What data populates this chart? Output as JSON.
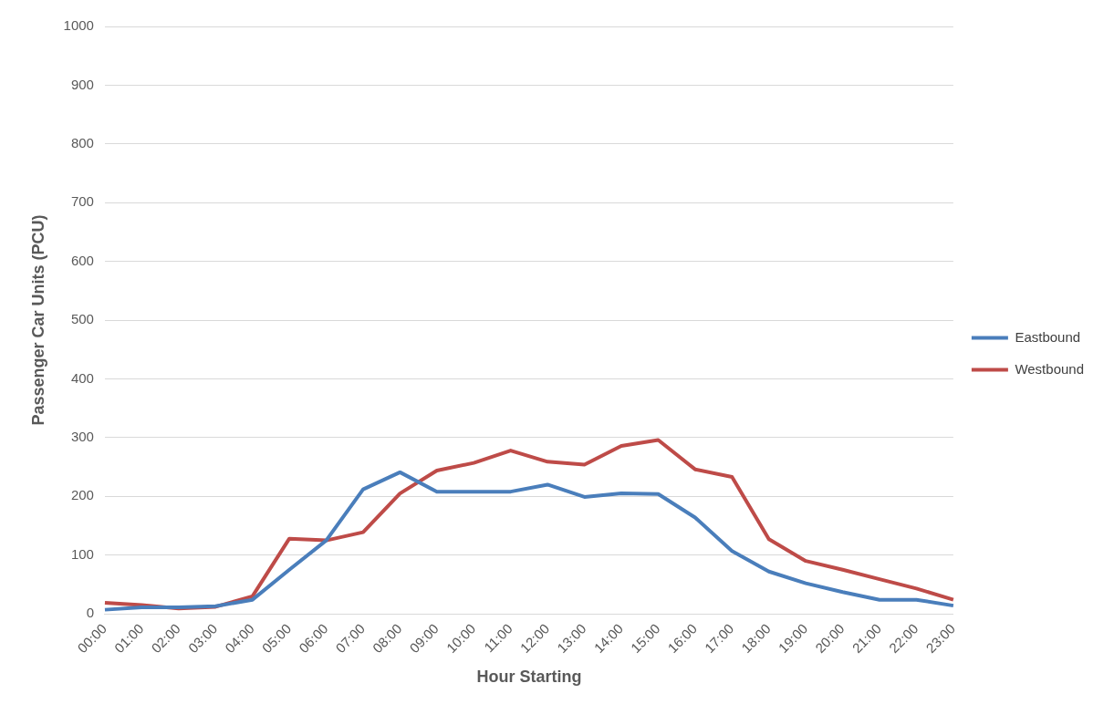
{
  "chart_data": {
    "type": "line",
    "xlabel": "Hour Starting",
    "ylabel": "Passenger Car Units (PCU)",
    "categories": [
      "00:00",
      "01:00",
      "02:00",
      "03:00",
      "04:00",
      "05:00",
      "06:00",
      "07:00",
      "08:00",
      "09:00",
      "10:00",
      "11:00",
      "12:00",
      "13:00",
      "14:00",
      "15:00",
      "16:00",
      "17:00",
      "18:00",
      "19:00",
      "20:00",
      "21:00",
      "22:00",
      "23:00"
    ],
    "series": [
      {
        "name": "Eastbound",
        "color": "#4a7ebb",
        "values": [
          7,
          11,
          11,
          13,
          24,
          75,
          125,
          212,
          241,
          208,
          208,
          208,
          220,
          199,
          205,
          204,
          164,
          107,
          72,
          52,
          37,
          24,
          24,
          14
        ]
      },
      {
        "name": "Westbound",
        "color": "#be4b48",
        "values": [
          19,
          15,
          9,
          12,
          30,
          128,
          125,
          139,
          205,
          244,
          257,
          278,
          259,
          254,
          286,
          296,
          246,
          233,
          127,
          90,
          75,
          59,
          43,
          24
        ]
      }
    ],
    "ylim": [
      0,
      1000
    ],
    "yticks": [
      0,
      100,
      200,
      300,
      400,
      500,
      600,
      700,
      800,
      900,
      1000
    ],
    "grid": "y",
    "legend": "right",
    "marker": "none",
    "line_style": "solid"
  }
}
